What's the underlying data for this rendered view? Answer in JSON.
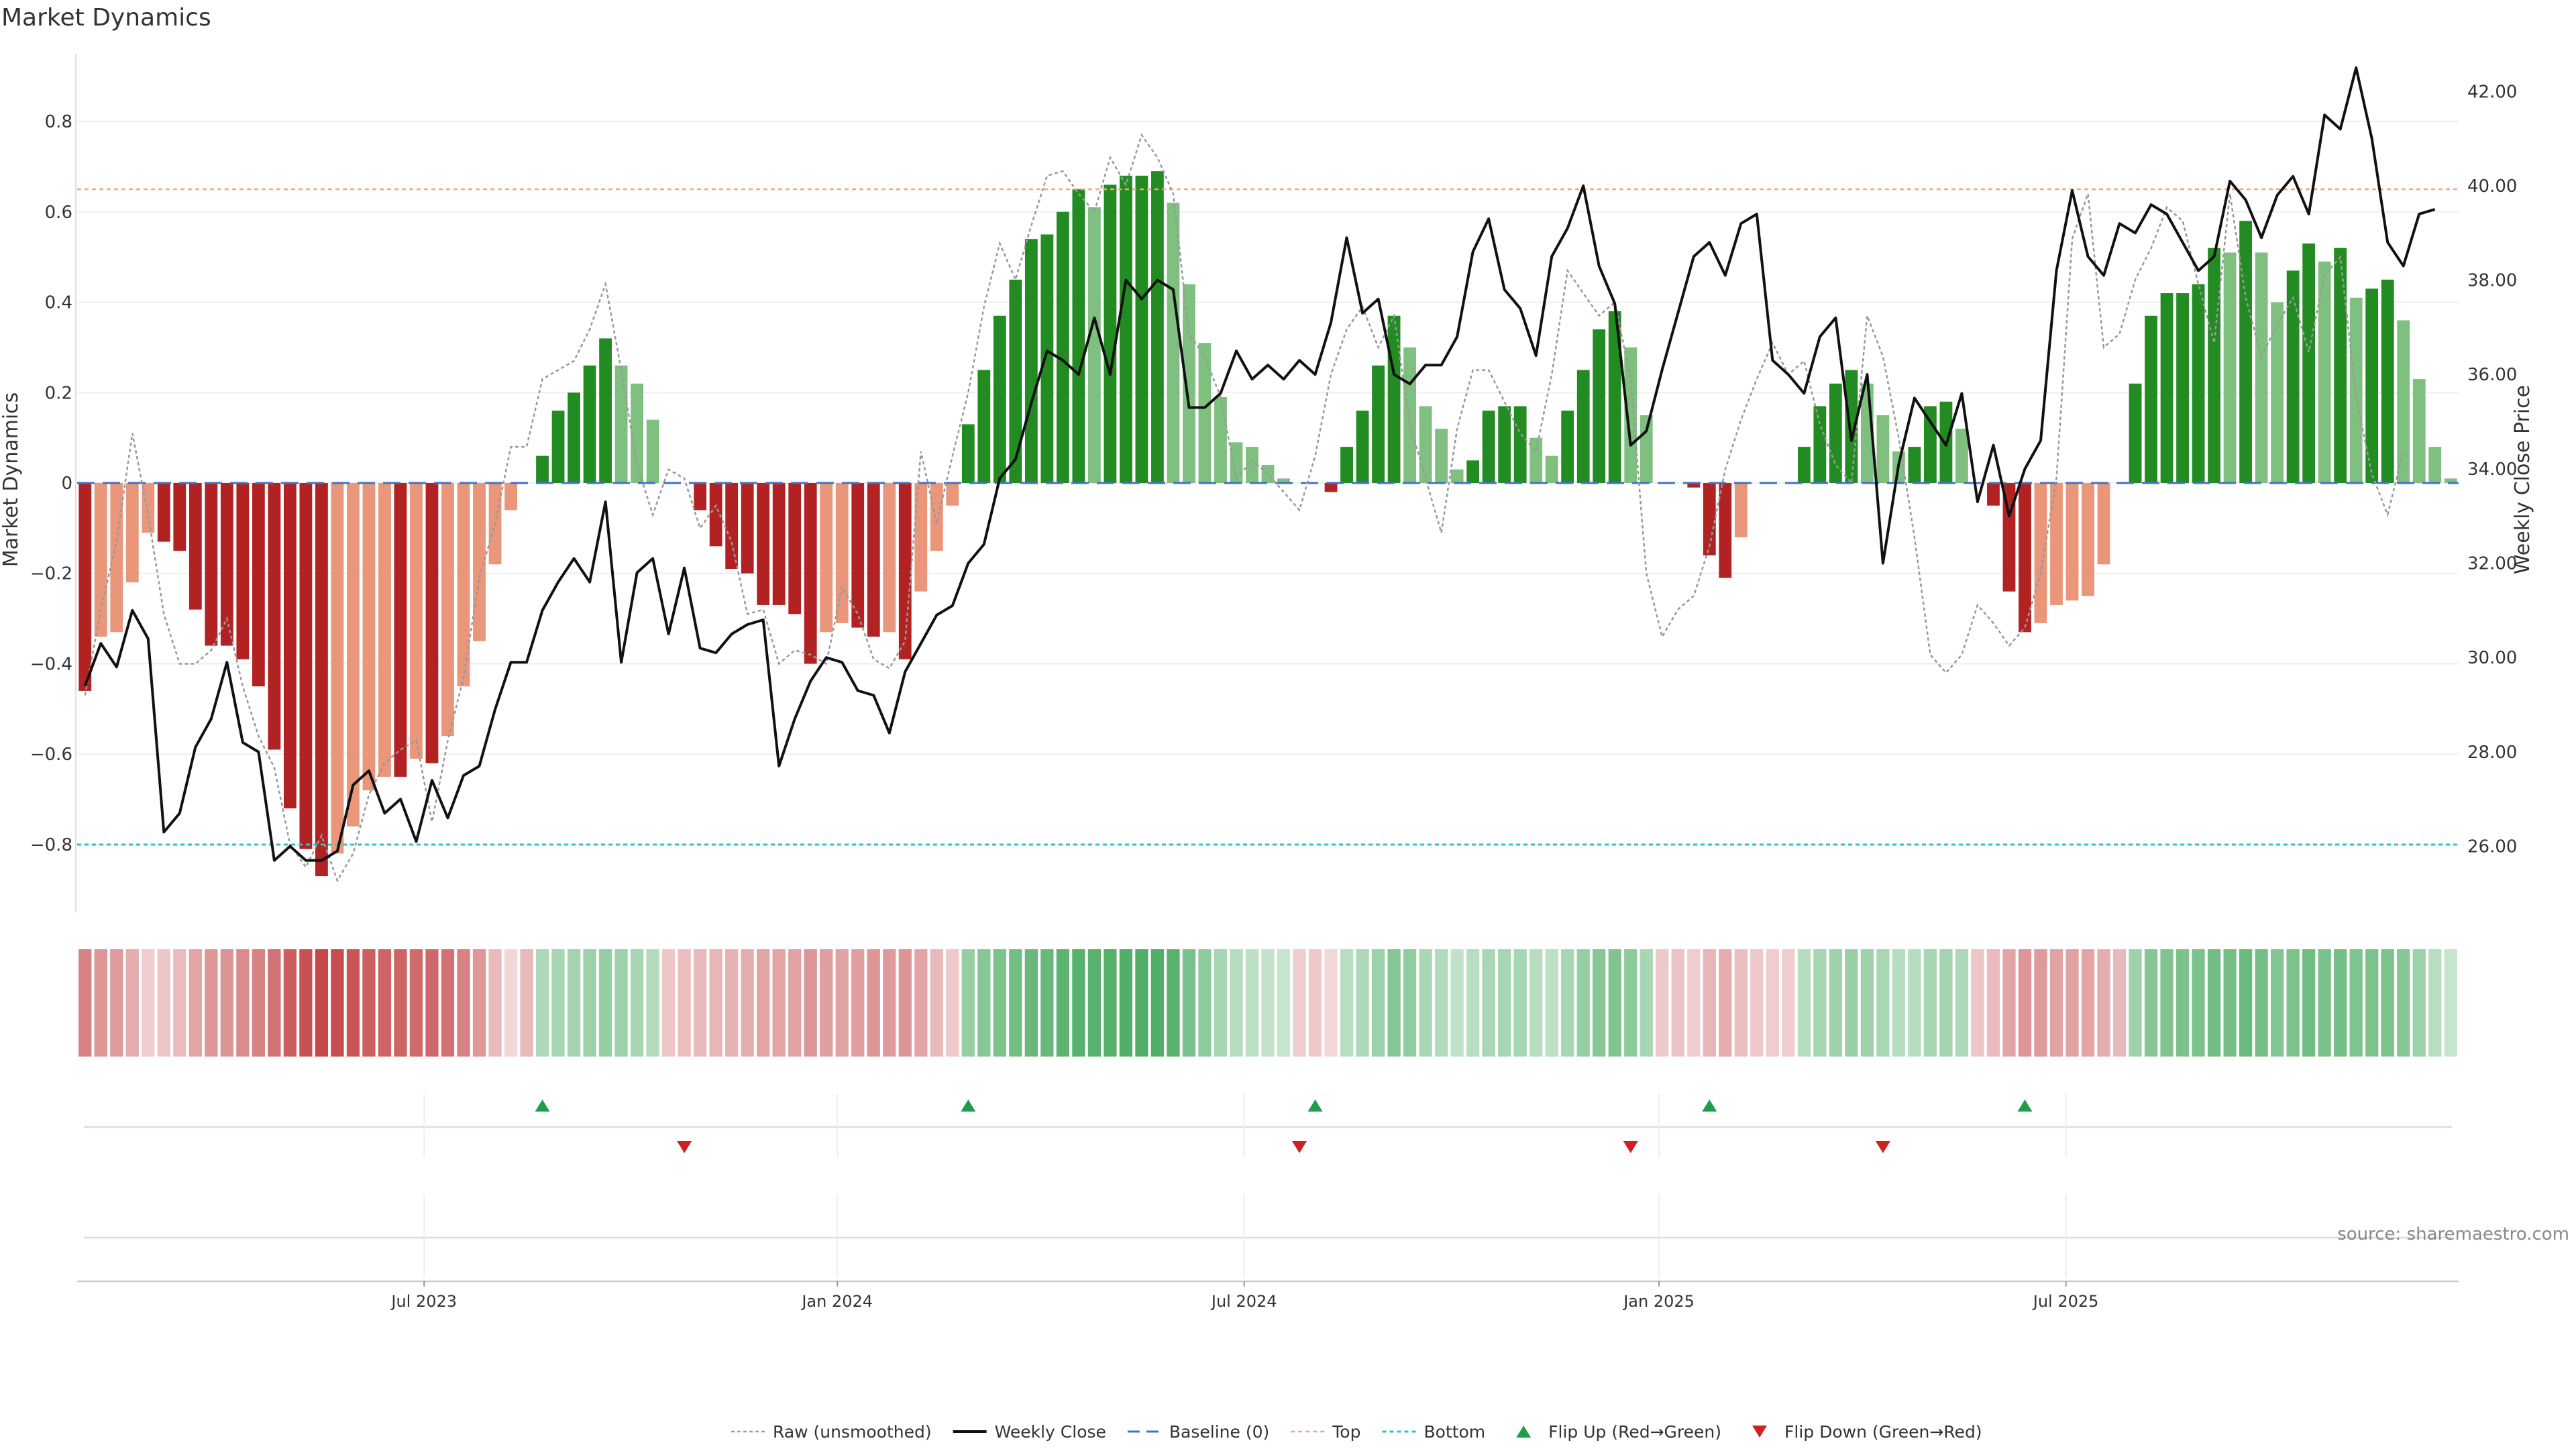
{
  "chart_data": {
    "type": "bar",
    "title": "Market Dynamics",
    "ylabel": "Market Dynamics",
    "y2label": "Weekly Close Price",
    "source": "source: sharemaestro.com",
    "ylim": [
      -0.95,
      0.95
    ],
    "y2lim": [
      24.6,
      42.8
    ],
    "y_ticks": [
      0.8,
      0.6,
      0.4,
      0.2,
      0,
      -0.2,
      -0.4,
      -0.6,
      -0.8
    ],
    "y_tick_labels": [
      "0.8",
      "0.6",
      "0.4",
      "0.2",
      "0",
      "−0.2",
      "−0.4",
      "−0.6",
      "−0.8"
    ],
    "y2_ticks": [
      42,
      40,
      38,
      36,
      34,
      32,
      30,
      28,
      26
    ],
    "y2_tick_labels": [
      "42.00",
      "40.00",
      "38.00",
      "36.00",
      "34.00",
      "32.00",
      "30.00",
      "28.00",
      "26.00"
    ],
    "x_start_week": 0,
    "x_ticks": [
      {
        "week": 21.5,
        "label": "Jul 2023"
      },
      {
        "week": 47.7,
        "label": "Jan 2024"
      },
      {
        "week": 73.5,
        "label": "Jul 2024"
      },
      {
        "week": 99.8,
        "label": "Jan 2025"
      },
      {
        "week": 125.6,
        "label": "Jul 2025"
      }
    ],
    "top_level": 0.65,
    "bottom_level": -0.8,
    "baseline": 0,
    "bars": [
      -0.46,
      -0.34,
      -0.33,
      -0.22,
      -0.11,
      -0.13,
      -0.15,
      -0.28,
      -0.36,
      -0.36,
      -0.39,
      -0.45,
      -0.59,
      -0.72,
      -0.81,
      -0.87,
      -0.82,
      -0.76,
      -0.68,
      -0.65,
      -0.65,
      -0.61,
      -0.62,
      -0.56,
      -0.45,
      -0.35,
      -0.18,
      -0.06,
      0,
      0.06,
      0.16,
      0.2,
      0.26,
      0.32,
      0.26,
      0.22,
      0.14,
      0,
      0,
      -0.06,
      -0.14,
      -0.19,
      -0.2,
      -0.27,
      -0.27,
      -0.29,
      -0.4,
      -0.33,
      -0.31,
      -0.32,
      -0.34,
      -0.33,
      -0.39,
      -0.24,
      -0.15,
      -0.05,
      0.13,
      0.25,
      0.37,
      0.45,
      0.54,
      0.55,
      0.6,
      0.65,
      0.61,
      0.66,
      0.68,
      0.68,
      0.69,
      0.62,
      0.44,
      0.31,
      0.19,
      0.09,
      0.08,
      0.04,
      0.01,
      0,
      0,
      -0.02,
      0.08,
      0.16,
      0.26,
      0.37,
      0.3,
      0.17,
      0.12,
      0.03,
      0.05,
      0.16,
      0.17,
      0.17,
      0.1,
      0.06,
      0.16,
      0.25,
      0.34,
      0.38,
      0.3,
      0.15,
      0,
      0,
      -0.01,
      -0.16,
      -0.21,
      -0.12,
      0,
      0,
      0,
      0.08,
      0.17,
      0.22,
      0.25,
      0.22,
      0.15,
      0.07,
      0.08,
      0.17,
      0.18,
      0.12,
      0,
      -0.05,
      -0.24,
      -0.33,
      -0.31,
      -0.27,
      -0.26,
      -0.25,
      -0.18,
      0,
      0.22,
      0.37,
      0.42,
      0.42,
      0.44,
      0.52,
      0.51,
      0.58,
      0.51,
      0.4,
      0.47,
      0.53,
      0.49,
      0.52,
      0.41,
      0.43,
      0.45,
      0.36,
      0.23,
      0.08,
      0.01
    ],
    "raw": [
      -0.47,
      -0.28,
      -0.13,
      0.11,
      -0.07,
      -0.29,
      -0.4,
      -0.4,
      -0.37,
      -0.3,
      -0.45,
      -0.56,
      -0.63,
      -0.8,
      -0.85,
      -0.78,
      -0.88,
      -0.82,
      -0.69,
      -0.62,
      -0.59,
      -0.57,
      -0.75,
      -0.57,
      -0.43,
      -0.21,
      -0.09,
      0.08,
      0.08,
      0.23,
      0.25,
      0.27,
      0.34,
      0.44,
      0.25,
      0.04,
      -0.07,
      0.03,
      0.01,
      -0.1,
      -0.05,
      -0.13,
      -0.29,
      -0.28,
      -0.4,
      -0.37,
      -0.38,
      -0.4,
      -0.23,
      -0.29,
      -0.39,
      -0.41,
      -0.35,
      0.07,
      -0.09,
      0.06,
      0.2,
      0.39,
      0.53,
      0.45,
      0.57,
      0.68,
      0.69,
      0.64,
      0.6,
      0.72,
      0.66,
      0.77,
      0.72,
      0.64,
      0.33,
      0.28,
      0.19,
      0.01,
      0.05,
      0.02,
      -0.02,
      -0.06,
      0.06,
      0.24,
      0.34,
      0.39,
      0.3,
      0.37,
      0.13,
      0.01,
      -0.11,
      0.12,
      0.25,
      0.25,
      0.18,
      0.11,
      0.07,
      0.24,
      0.47,
      0.42,
      0.37,
      0.4,
      0.23,
      -0.2,
      -0.34,
      -0.28,
      -0.25,
      -0.14,
      0.03,
      0.14,
      0.23,
      0.31,
      0.24,
      0.27,
      0.13,
      0.04,
      0.0,
      0.37,
      0.28,
      0.1,
      -0.12,
      -0.38,
      -0.42,
      -0.38,
      -0.27,
      -0.31,
      -0.36,
      -0.32,
      -0.2,
      0.01,
      0.54,
      0.64,
      0.3,
      0.33,
      0.45,
      0.52,
      0.61,
      0.58,
      0.44,
      0.31,
      0.64,
      0.41,
      0.28,
      0.35,
      0.41,
      0.29,
      0.46,
      0.5,
      0.19,
      0.02,
      -0.07,
      0.07
    ],
    "close": [
      29.4,
      30.3,
      29.8,
      31.0,
      30.4,
      26.3,
      26.7,
      28.1,
      28.7,
      29.9,
      28.2,
      28.0,
      25.7,
      26.0,
      25.7,
      25.7,
      25.9,
      27.3,
      27.6,
      26.7,
      27.0,
      26.1,
      27.4,
      26.6,
      27.5,
      27.7,
      28.9,
      29.9,
      29.9,
      31.0,
      31.6,
      32.1,
      31.6,
      33.3,
      29.9,
      31.8,
      32.1,
      30.5,
      31.9,
      30.2,
      30.1,
      30.5,
      30.7,
      30.8,
      27.7,
      28.7,
      29.5,
      30.0,
      29.9,
      29.3,
      29.2,
      28.4,
      29.7,
      30.3,
      30.9,
      31.1,
      32.0,
      32.4,
      33.8,
      34.2,
      35.4,
      36.5,
      36.3,
      36.0,
      37.2,
      36.0,
      38.0,
      37.6,
      38.0,
      37.8,
      35.3,
      35.3,
      35.6,
      36.5,
      35.9,
      36.2,
      35.9,
      36.3,
      36.0,
      37.1,
      38.9,
      37.3,
      37.6,
      36.0,
      35.8,
      36.2,
      36.2,
      36.8,
      38.6,
      39.3,
      37.8,
      37.4,
      36.4,
      38.5,
      39.1,
      40.0,
      38.3,
      37.5,
      34.5,
      34.8,
      36.1,
      37.3,
      38.5,
      38.8,
      38.1,
      39.2,
      39.4,
      36.3,
      36.0,
      35.6,
      36.8,
      37.2,
      34.6,
      36.0,
      32.0,
      34.1,
      35.5,
      35.0,
      34.5,
      35.6,
      33.3,
      34.5,
      33.0,
      34.0,
      34.6,
      38.2,
      39.9,
      38.5,
      38.1,
      39.2,
      39.0,
      39.6,
      39.4,
      38.8,
      38.2,
      38.5,
      40.1,
      39.7,
      38.9,
      39.8,
      40.2,
      39.4,
      41.5,
      41.2,
      42.5,
      41.0,
      38.8,
      38.3,
      39.4,
      39.5
    ],
    "heat_values": [
      0.62,
      0.5,
      0.48,
      0.38,
      0.18,
      0.22,
      0.28,
      0.42,
      0.5,
      0.52,
      0.56,
      0.62,
      0.72,
      0.84,
      0.92,
      0.96,
      0.94,
      0.9,
      0.84,
      0.8,
      0.8,
      0.76,
      0.78,
      0.72,
      0.62,
      0.5,
      0.3,
      0.12,
      0.3,
      0.34,
      0.38,
      0.4,
      0.44,
      0.48,
      0.44,
      0.38,
      0.32,
      0.22,
      0.26,
      0.3,
      0.32,
      0.34,
      0.36,
      0.42,
      0.42,
      0.44,
      0.5,
      0.46,
      0.44,
      0.46,
      0.5,
      0.48,
      0.52,
      0.42,
      0.3,
      0.2,
      0.48,
      0.56,
      0.62,
      0.68,
      0.74,
      0.74,
      0.8,
      0.82,
      0.82,
      0.84,
      0.86,
      0.86,
      0.86,
      0.82,
      0.64,
      0.52,
      0.38,
      0.3,
      0.26,
      0.22,
      0.2,
      0.18,
      0.2,
      0.12,
      0.28,
      0.34,
      0.44,
      0.56,
      0.5,
      0.36,
      0.32,
      0.24,
      0.28,
      0.36,
      0.38,
      0.38,
      0.3,
      0.26,
      0.38,
      0.48,
      0.56,
      0.6,
      0.52,
      0.36,
      0.2,
      0.24,
      0.18,
      0.32,
      0.38,
      0.26,
      0.2,
      0.18,
      0.18,
      0.3,
      0.38,
      0.42,
      0.46,
      0.42,
      0.36,
      0.3,
      0.3,
      0.38,
      0.4,
      0.34,
      0.22,
      0.28,
      0.42,
      0.5,
      0.48,
      0.44,
      0.44,
      0.42,
      0.36,
      0.3,
      0.42,
      0.56,
      0.6,
      0.62,
      0.62,
      0.68,
      0.66,
      0.72,
      0.66,
      0.58,
      0.62,
      0.68,
      0.64,
      0.66,
      0.6,
      0.62,
      0.62,
      0.56,
      0.44,
      0.28,
      0.2
    ],
    "flips_up": [
      29,
      56,
      78,
      103,
      123
    ],
    "flips_down": [
      38,
      77,
      98,
      114
    ],
    "colors": {
      "strong_green": "#228b22",
      "light_green": "#7fbf7f",
      "strong_red": "#b22222",
      "light_red": "#e9967a",
      "close_line": "#111111",
      "raw_line": "#999999",
      "baseline": "#4472c4",
      "top": "#f0a878",
      "bottom": "#2ec4c4",
      "flip_up": "#1e9e4a",
      "flip_down": "#cc2222",
      "heat_green": "#2e9e48",
      "heat_red": "#c0393b"
    },
    "legend": [
      {
        "label": "Raw (unsmoothed)",
        "kind": "raw"
      },
      {
        "label": "Weekly Close",
        "kind": "close"
      },
      {
        "label": "Baseline (0)",
        "kind": "baseline"
      },
      {
        "label": "Top",
        "kind": "top"
      },
      {
        "label": "Bottom",
        "kind": "bottom"
      },
      {
        "label": "Flip Up (Red→Green)",
        "kind": "flip_up"
      },
      {
        "label": "Flip Down (Green→Red)",
        "kind": "flip_down"
      }
    ]
  }
}
